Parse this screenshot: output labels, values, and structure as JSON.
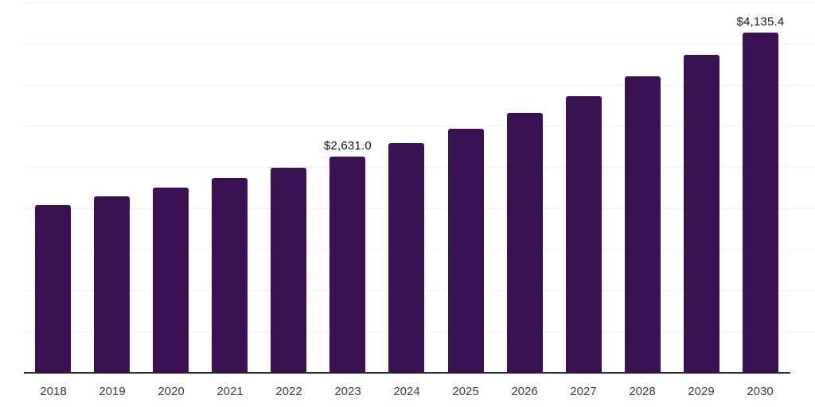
{
  "chart_data": {
    "type": "bar",
    "categories": [
      "2018",
      "2019",
      "2020",
      "2021",
      "2022",
      "2023",
      "2024",
      "2025",
      "2026",
      "2027",
      "2028",
      "2029",
      "2030"
    ],
    "values": [
      2040,
      2145,
      2250,
      2370,
      2490,
      2631.0,
      2795,
      2960,
      3155,
      3365,
      3600,
      3860,
      4135.4
    ],
    "data_labels": {
      "2023": "$2,631.0",
      "2030": "$4,135.4"
    },
    "title": "",
    "xlabel": "",
    "ylabel": "",
    "ylim": [
      0,
      4500
    ],
    "gridline_step": 500,
    "grid": true,
    "legend": false,
    "colors": {
      "bar": "#3a1152",
      "axis_line": "#2e2e2e",
      "gridline": "#f2f2f4",
      "data_label": "#141414",
      "tick_label": "#3d3d3d",
      "background": "#ffffff"
    }
  }
}
